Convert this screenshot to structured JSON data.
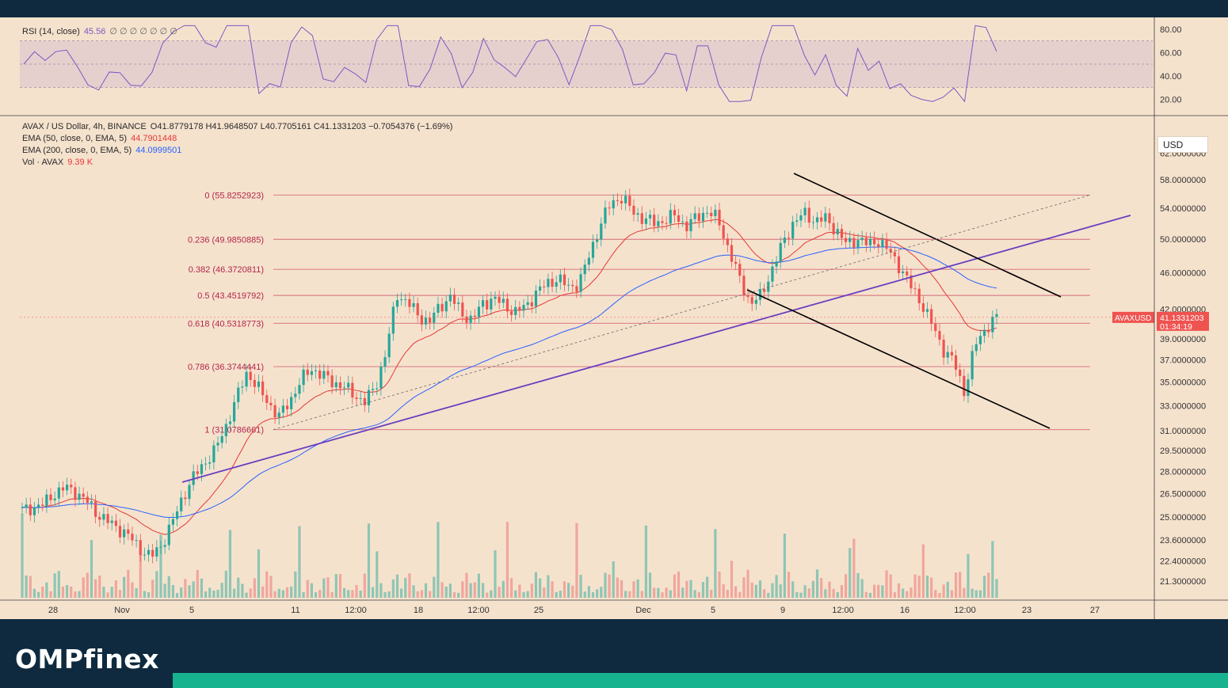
{
  "brand": {
    "logo_text": "OMPfinex"
  },
  "rsi": {
    "label": "RSI (14, close)",
    "value": "45.56",
    "placeholders": "∅ ∅ ∅ ∅ ∅ ∅ ∅",
    "ticks": [
      "80.00",
      "60.00",
      "40.00",
      "20.00"
    ],
    "upper": 70,
    "lower": 30,
    "mid": 50,
    "range": [
      10,
      90
    ],
    "color": "#7e57c2"
  },
  "header": {
    "symbol": "AVAX / US Dollar, 4h, BINANCE",
    "ohlc": "O41.8779178  H41.9648507  L40.7705161  C41.1331203  −0.7054376 (−1.69%)",
    "ema50_label": "EMA (50, close, 0, EMA, 5)",
    "ema50_value": "44.7901448",
    "ema200_label": "EMA (200, close, 0, EMA, 5)",
    "ema200_value": "44.0999501",
    "vol_label": "Vol · AVAX",
    "vol_value": "9.39 K",
    "currency": "USD"
  },
  "price_badge": {
    "symbol": "AVAXUSD",
    "price": "41.1331203",
    "countdown": "01:34:19"
  },
  "colors": {
    "up": "#26a69a",
    "down": "#ef5350",
    "ema50": "#e53935",
    "ema200": "#2962ff",
    "fib": "#d66a78",
    "trend": "#6a3fc1",
    "channel": "#000000"
  },
  "chart_data": {
    "type": "candlestick",
    "symbol": "AVAX / US Dollar",
    "interval": "4h",
    "y_axis_ticks": [
      "62.0000000",
      "58.0000000",
      "54.0000000",
      "50.0000000",
      "46.0000000",
      "42.0000000",
      "39.0000000",
      "37.0000000",
      "35.0000000",
      "33.0000000",
      "31.0000000",
      "29.5000000",
      "28.0000000",
      "26.5000000",
      "25.0000000",
      "23.6000000",
      "22.4000000",
      "21.3000000"
    ],
    "y_scale": "log",
    "x_axis_ticks": [
      "28",
      "Nov",
      "5",
      "11",
      "12:00",
      "18",
      "12:00",
      "25",
      "Dec",
      "5",
      "9",
      "12:00",
      "16",
      "12:00",
      "23",
      "27"
    ],
    "fib_levels": [
      {
        "ratio": "0",
        "price": 55.8252923
      },
      {
        "ratio": "0.236",
        "price": 49.9850885
      },
      {
        "ratio": "0.382",
        "price": 46.3720811
      },
      {
        "ratio": "0.5",
        "price": 43.4519792
      },
      {
        "ratio": "0.618",
        "price": 40.5318773
      },
      {
        "ratio": "0.786",
        "price": 36.3744441
      },
      {
        "ratio": "1",
        "price": 31.0786661
      }
    ],
    "last_price": 41.1331203,
    "close_path": [
      25.4,
      25.6,
      25.8,
      26.5,
      26.9,
      26.6,
      26.0,
      25.2,
      24.7,
      24.3,
      23.8,
      23.1,
      22.6,
      23.3,
      24.6,
      26.3,
      27.6,
      28.6,
      29.5,
      31.3,
      33.6,
      35.9,
      34.5,
      33.2,
      32.1,
      33.4,
      35.1,
      36.2,
      35.6,
      35.0,
      34.6,
      33.9,
      33.3,
      34.6,
      37.8,
      43.6,
      42.7,
      41.3,
      40.6,
      42.3,
      43.3,
      41.6,
      40.8,
      42.6,
      43.1,
      42.5,
      41.6,
      42.3,
      43.7,
      44.8,
      45.3,
      44.4,
      44.7,
      48.2,
      51.9,
      54.8,
      55.5,
      53.6,
      52.6,
      52.1,
      52.4,
      53.1,
      51.6,
      52.8,
      53.7,
      52.4,
      48.6,
      45.2,
      42.6,
      43.4,
      46.3,
      49.4,
      52.1,
      53.3,
      52.4,
      52.6,
      51.2,
      49.3,
      50.1,
      49.3,
      49.9,
      48.4,
      46.6,
      44.4,
      42.6,
      40.3,
      38.0,
      36.8,
      34.1,
      38.4,
      40.1,
      41.1
    ],
    "volume_range": [
      0,
      18
    ]
  }
}
